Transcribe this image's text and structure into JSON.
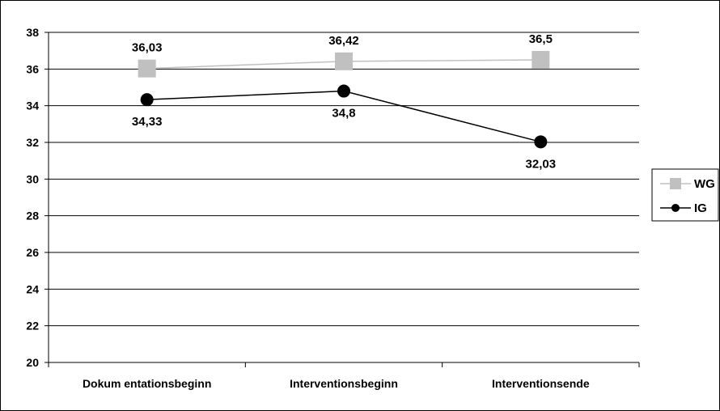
{
  "chart_data": {
    "type": "line",
    "categories": [
      "Dokum entationsbeginn",
      "Interventionsbeginn",
      "Interventionsende"
    ],
    "series": [
      {
        "name": "WG",
        "values": [
          36.03,
          36.42,
          36.5
        ],
        "labels": [
          "36,03",
          "36,42",
          "36,5"
        ],
        "color": "#c0c0c0",
        "marker": "square"
      },
      {
        "name": "IG",
        "values": [
          34.33,
          34.8,
          32.03
        ],
        "labels": [
          "34,33",
          "34,8",
          "32,03"
        ],
        "color": "#000000",
        "marker": "circle"
      }
    ],
    "ylim": [
      20,
      38
    ],
    "ystep": 2,
    "ytick_labels": [
      "20",
      "22",
      "24",
      "26",
      "28",
      "30",
      "32",
      "34",
      "36",
      "38"
    ],
    "grid": true,
    "legend": "right",
    "title": "",
    "xlabel": "",
    "ylabel": ""
  }
}
